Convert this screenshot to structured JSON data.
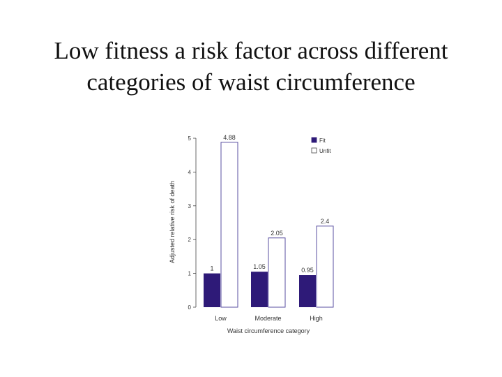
{
  "slide": {
    "title_line1": "Low fitness a risk factor across different",
    "title_line2": "categories of waist circumference"
  },
  "chart_data": {
    "type": "bar",
    "title": "",
    "xlabel": "Waist circumference category",
    "ylabel": "Adjusted relative risk of death",
    "categories": [
      "Low",
      "Moderate",
      "High"
    ],
    "series": [
      {
        "name": "Fit",
        "values": [
          1,
          1.05,
          0.95
        ],
        "color": "#2e1a78",
        "labels": [
          "1",
          "1.05",
          "0.95"
        ]
      },
      {
        "name": "Unfit",
        "values": [
          4.88,
          2.05,
          2.4
        ],
        "color": "#ffffff",
        "labels": [
          "4.88",
          "2.05",
          "2.4"
        ]
      }
    ],
    "yticks": [
      0,
      1,
      2,
      3,
      4,
      5
    ],
    "ylim": [
      0,
      5
    ],
    "legend": "top-right",
    "grid": false,
    "colors": {
      "fit": "#2e1a78",
      "unfit_outline": "#5a4fa0",
      "axis": "#444444"
    }
  }
}
